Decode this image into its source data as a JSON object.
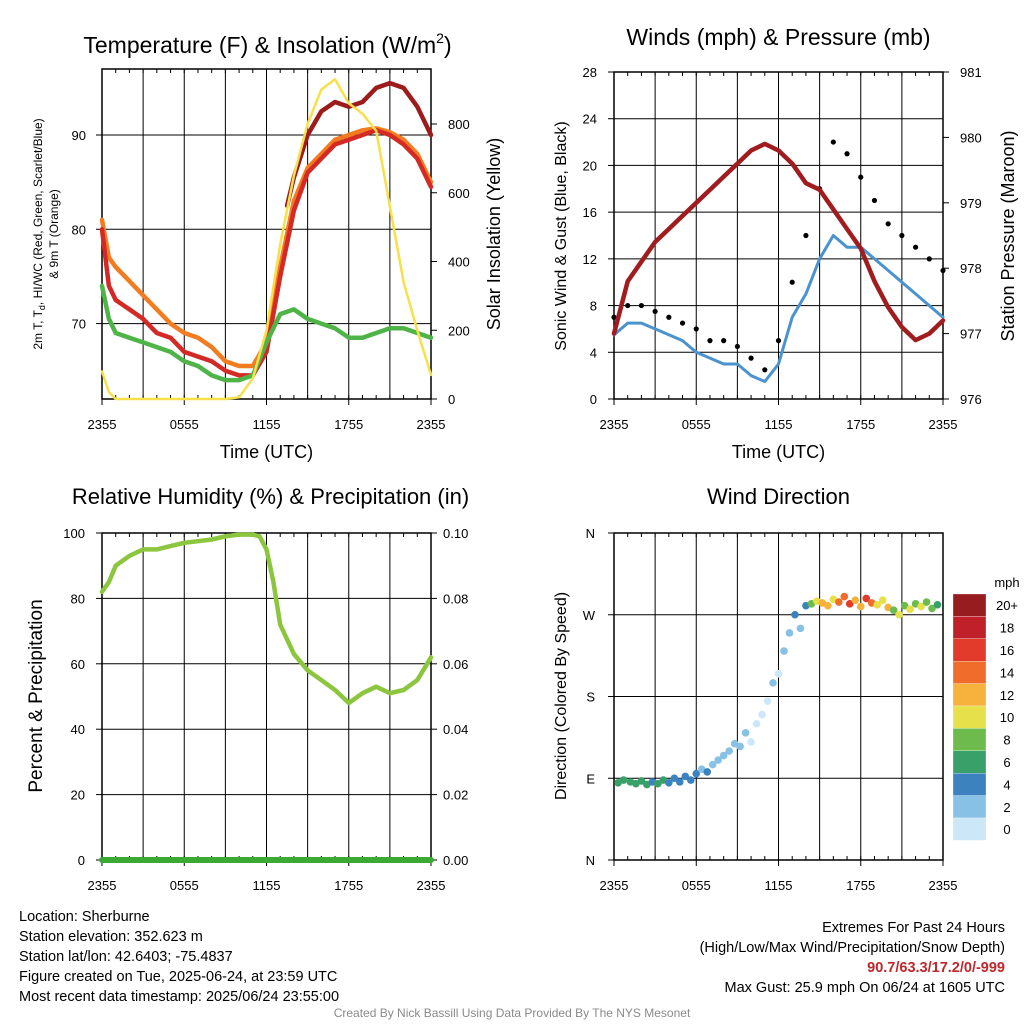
{
  "chart_data": [
    {
      "type": "line",
      "title_pre": "Temperature (F) & Insolation (W/m",
      "title_sup": "2",
      "title_post": ")",
      "ylabel_left": [
        "2m T, T",
        "d",
        ", HI/WC (Red, Green, Scarlet/Blue)",
        "& 9m T (Orange)"
      ],
      "ylabel_right": "Solar Insolation (Yellow)",
      "xlabel": "Time (UTC)",
      "x_ticks": [
        "2355",
        "0555",
        "1155",
        "1755",
        "2355"
      ],
      "x_range_hours": [
        0,
        24
      ],
      "ylim_left": [
        62,
        97
      ],
      "yticks_left": [
        70,
        80,
        90
      ],
      "ylim_right": [
        0,
        960
      ],
      "yticks_right": [
        0,
        200,
        400,
        600,
        800
      ],
      "series": [
        {
          "color": "#f47c20",
          "axis": "left",
          "x": [
            0,
            0.5,
            1,
            2,
            3,
            4,
            5,
            6,
            7,
            8,
            9,
            10,
            11,
            12,
            13,
            14,
            15,
            16,
            17,
            18,
            19,
            20,
            21,
            22,
            23,
            24
          ],
          "y": [
            81,
            77,
            76,
            74.5,
            73,
            71.5,
            70,
            69,
            68.5,
            67.5,
            66,
            65.5,
            65.5,
            68,
            76,
            83,
            86.5,
            88,
            89.5,
            90,
            90.5,
            90.7,
            90.3,
            89.5,
            88,
            85
          ]
        },
        {
          "color": "#d42a25",
          "axis": "left",
          "x": [
            0,
            0.5,
            1,
            2,
            3,
            4,
            5,
            6,
            7,
            8,
            9,
            10,
            11,
            12,
            13,
            14,
            15,
            16,
            17,
            18,
            19,
            20,
            21,
            22,
            23,
            24
          ],
          "y": [
            80,
            74,
            72.5,
            71.5,
            70.5,
            69,
            68.5,
            67,
            66.5,
            66,
            65,
            64.5,
            64.5,
            67,
            75,
            82,
            86,
            87.5,
            89,
            89.5,
            90,
            90.5,
            90,
            89,
            87.5,
            84.5
          ]
        },
        {
          "color": "#9e1b1c",
          "axis": "left",
          "x": [
            13.5,
            14,
            15,
            16,
            17,
            18,
            19,
            20,
            21,
            22,
            23,
            24
          ],
          "y": [
            82.5,
            85.5,
            90,
            92.5,
            93.5,
            93,
            93.5,
            95,
            95.5,
            95,
            93,
            90
          ]
        },
        {
          "color": "#4eb448",
          "axis": "left",
          "x": [
            0,
            0.5,
            1,
            2,
            3,
            4,
            5,
            6,
            7,
            8,
            9,
            10,
            11,
            12,
            13,
            14,
            15,
            16,
            17,
            18,
            19,
            20,
            21,
            22,
            23,
            24
          ],
          "y": [
            74,
            70.5,
            69,
            68.5,
            68,
            67.5,
            67,
            66,
            65.5,
            64.5,
            64,
            64,
            64.5,
            68,
            71,
            71.5,
            70.5,
            70,
            69.5,
            68.5,
            68.5,
            69,
            69.5,
            69.5,
            69,
            68.5
          ]
        },
        {
          "color": "#f7e04b",
          "axis": "right",
          "x": [
            0,
            0.5,
            1,
            2,
            3,
            4,
            5,
            6,
            7,
            8,
            9,
            10,
            11,
            12,
            13,
            14,
            15,
            16,
            17,
            18,
            19,
            20,
            21,
            22,
            23,
            24
          ],
          "y": [
            80,
            20,
            0,
            0,
            0,
            0,
            0,
            0,
            0,
            0,
            0,
            5,
            60,
            200,
            450,
            650,
            800,
            900,
            930,
            860,
            830,
            780,
            560,
            340,
            200,
            70
          ]
        }
      ]
    },
    {
      "type": "line",
      "title": "Winds (mph) & Pressure (mb)",
      "ylabel_left": "Sonic Wind & Gust (Blue, Black)",
      "ylabel_right": "Station Pressure (Maroon)",
      "xlabel": "Time (UTC)",
      "x_ticks": [
        "2355",
        "0555",
        "1155",
        "1755",
        "2355"
      ],
      "x_range_hours": [
        0,
        24
      ],
      "ylim_left": [
        0,
        28
      ],
      "yticks_left": [
        0,
        4,
        8,
        12,
        16,
        20,
        24,
        28
      ],
      "ylim_right": [
        976,
        981
      ],
      "yticks_right": [
        976,
        977,
        978,
        979,
        980,
        981
      ],
      "series": [
        {
          "name_hint": "wind",
          "color": "#4a93cf",
          "axis": "left",
          "x": [
            0,
            1,
            2,
            3,
            4,
            5,
            6,
            7,
            8,
            9,
            10,
            11,
            12,
            13,
            14,
            15,
            16,
            17,
            18,
            19,
            20,
            21,
            22,
            23,
            24
          ],
          "y": [
            5.5,
            6.5,
            6.5,
            6,
            5.5,
            5,
            4,
            3.5,
            3,
            3,
            2,
            1.5,
            3,
            7,
            9,
            12,
            14,
            13,
            13,
            12,
            11,
            10,
            9,
            8,
            7
          ]
        },
        {
          "name_hint": "gust",
          "color": "#000000",
          "axis": "left",
          "style": "points",
          "x": [
            0,
            1,
            2,
            3,
            4,
            5,
            6,
            7,
            8,
            9,
            10,
            11,
            12,
            13,
            14,
            15,
            16,
            17,
            18,
            19,
            20,
            21,
            22,
            23,
            24
          ],
          "y": [
            7,
            8,
            8,
            7.5,
            7,
            6.5,
            6,
            5,
            5,
            4.5,
            3.5,
            2.5,
            5,
            10,
            14,
            18,
            22,
            21,
            19,
            17,
            15,
            14,
            13,
            12,
            11
          ]
        },
        {
          "name_hint": "pressure",
          "color": "#a01c1e",
          "axis": "right",
          "x": [
            0,
            0.5,
            1,
            2,
            3,
            4,
            5,
            6,
            7,
            8,
            9,
            10,
            11,
            12,
            13,
            14,
            15,
            16,
            17,
            18,
            19,
            20,
            21,
            22,
            23,
            24
          ],
          "y": [
            977,
            977.4,
            977.8,
            978.1,
            978.4,
            978.6,
            978.8,
            979,
            979.2,
            979.4,
            979.6,
            979.8,
            979.9,
            979.8,
            979.6,
            979.3,
            979.2,
            978.9,
            978.6,
            978.3,
            977.8,
            977.4,
            977.1,
            976.9,
            977,
            977.2
          ]
        }
      ]
    },
    {
      "type": "line",
      "title": "Relative Humidity (%) & Precipitation (in)",
      "ylabel_left": "Percent & Precipitation",
      "x_ticks": [
        "2355",
        "0555",
        "1155",
        "1755",
        "2355"
      ],
      "x_range_hours": [
        0,
        24
      ],
      "ylim_left": [
        0,
        100
      ],
      "yticks_left": [
        0,
        20,
        40,
        60,
        80,
        100
      ],
      "ylim_right": [
        0,
        0.1
      ],
      "yticks_right": [
        "0.00",
        "0.02",
        "0.04",
        "0.06",
        "0.08",
        "0.10"
      ],
      "series": [
        {
          "name_hint": "rh",
          "color": "#8cc63f",
          "axis": "left",
          "x": [
            0,
            0.5,
            1,
            2,
            3,
            4,
            5,
            6,
            7,
            8,
            9,
            10,
            11,
            11.5,
            12,
            12.5,
            13,
            14,
            15,
            16,
            17,
            18,
            19,
            20,
            21,
            22,
            23,
            24
          ],
          "y": [
            82,
            85,
            90,
            93,
            95,
            95,
            96,
            97,
            97.5,
            98,
            99,
            99.5,
            99.5,
            99,
            95,
            85,
            72,
            63,
            58,
            55,
            52,
            48,
            51,
            53,
            51,
            52,
            55,
            62
          ]
        },
        {
          "name_hint": "precip",
          "color": "#3aaa35",
          "axis": "left",
          "x": [
            0,
            24
          ],
          "y": [
            0,
            0
          ]
        }
      ]
    },
    {
      "type": "scatter",
      "title": "Wind Direction",
      "ylabel_left": "Direction (Colored By Speed)",
      "x_ticks": [
        "2355",
        "0555",
        "1155",
        "1755",
        "2355"
      ],
      "x_range_hours": [
        0,
        24
      ],
      "y_ticks": [
        "N",
        "E",
        "S",
        "W",
        "N"
      ],
      "ylim": [
        0,
        360
      ],
      "colorbar": {
        "title": "mph",
        "labels": [
          "0",
          "2",
          "4",
          "6",
          "8",
          "10",
          "12",
          "14",
          "16",
          "18",
          "20+"
        ],
        "colors": [
          "#cce7f7",
          "#88c1e6",
          "#3b82bf",
          "#3aa06a",
          "#6dbb4c",
          "#e6e04a",
          "#f7b13d",
          "#f06c2b",
          "#e23b2c",
          "#c0202a",
          "#961c20"
        ]
      },
      "points": [
        {
          "t": 0.3,
          "d": 85,
          "s": 6
        },
        {
          "t": 0.7,
          "d": 88,
          "s": 7
        },
        {
          "t": 1.2,
          "d": 86,
          "s": 6
        },
        {
          "t": 1.6,
          "d": 84,
          "s": 7
        },
        {
          "t": 2.0,
          "d": 87,
          "s": 6
        },
        {
          "t": 2.4,
          "d": 83,
          "s": 7
        },
        {
          "t": 2.8,
          "d": 86,
          "s": 5
        },
        {
          "t": 3.2,
          "d": 84,
          "s": 7
        },
        {
          "t": 3.6,
          "d": 88,
          "s": 6
        },
        {
          "t": 4.0,
          "d": 85,
          "s": 5
        },
        {
          "t": 4.4,
          "d": 90,
          "s": 4
        },
        {
          "t": 4.8,
          "d": 86,
          "s": 5
        },
        {
          "t": 5.2,
          "d": 92,
          "s": 4
        },
        {
          "t": 5.6,
          "d": 88,
          "s": 4
        },
        {
          "t": 6.0,
          "d": 95,
          "s": 4
        },
        {
          "t": 6.4,
          "d": 100,
          "s": 3
        },
        {
          "t": 6.8,
          "d": 97,
          "s": 4
        },
        {
          "t": 7.2,
          "d": 105,
          "s": 3
        },
        {
          "t": 7.6,
          "d": 110,
          "s": 3
        },
        {
          "t": 8.0,
          "d": 115,
          "s": 2
        },
        {
          "t": 8.4,
          "d": 120,
          "s": 3
        },
        {
          "t": 8.8,
          "d": 128,
          "s": 2
        },
        {
          "t": 9.2,
          "d": 125,
          "s": 3
        },
        {
          "t": 9.6,
          "d": 140,
          "s": 2
        },
        {
          "t": 10.0,
          "d": 130,
          "s": 1
        },
        {
          "t": 10.4,
          "d": 150,
          "s": 1
        },
        {
          "t": 10.8,
          "d": 160,
          "s": 0
        },
        {
          "t": 11.2,
          "d": 175,
          "s": 1
        },
        {
          "t": 11.6,
          "d": 195,
          "s": 2
        },
        {
          "t": 12.0,
          "d": 205,
          "s": 1
        },
        {
          "t": 12.4,
          "d": 230,
          "s": 2
        },
        {
          "t": 12.8,
          "d": 250,
          "s": 3
        },
        {
          "t": 13.2,
          "d": 270,
          "s": 4
        },
        {
          "t": 13.6,
          "d": 255,
          "s": 2
        },
        {
          "t": 14.0,
          "d": 280,
          "s": 5
        },
        {
          "t": 14.4,
          "d": 282,
          "s": 9
        },
        {
          "t": 14.8,
          "d": 285,
          "s": 10
        },
        {
          "t": 15.2,
          "d": 283,
          "s": 12
        },
        {
          "t": 15.6,
          "d": 280,
          "s": 13
        },
        {
          "t": 16.0,
          "d": 287,
          "s": 11
        },
        {
          "t": 16.4,
          "d": 284,
          "s": 14
        },
        {
          "t": 16.8,
          "d": 290,
          "s": 15
        },
        {
          "t": 17.2,
          "d": 282,
          "s": 16
        },
        {
          "t": 17.6,
          "d": 286,
          "s": 13
        },
        {
          "t": 18.0,
          "d": 279,
          "s": 12
        },
        {
          "t": 18.4,
          "d": 288,
          "s": 17
        },
        {
          "t": 18.8,
          "d": 283,
          "s": 15
        },
        {
          "t": 19.2,
          "d": 281,
          "s": 11
        },
        {
          "t": 19.6,
          "d": 286,
          "s": 10
        },
        {
          "t": 20.0,
          "d": 278,
          "s": 12
        },
        {
          "t": 20.4,
          "d": 275,
          "s": 9
        },
        {
          "t": 20.8,
          "d": 270,
          "s": 10
        },
        {
          "t": 21.2,
          "d": 280,
          "s": 8
        },
        {
          "t": 21.6,
          "d": 276,
          "s": 11
        },
        {
          "t": 22.0,
          "d": 282,
          "s": 9
        },
        {
          "t": 22.4,
          "d": 279,
          "s": 10
        },
        {
          "t": 22.8,
          "d": 284,
          "s": 8
        },
        {
          "t": 23.2,
          "d": 277,
          "s": 9
        },
        {
          "t": 23.6,
          "d": 281,
          "s": 7
        }
      ]
    }
  ],
  "info_left": [
    "Location: Sherburne",
    "Station elevation: 352.623 m",
    "Station lat/lon: 42.6403; -75.4837",
    "Figure created on Tue, 2025-06-24, at 23:59 UTC",
    "Most recent data timestamp: 2025/06/24 23:55:00"
  ],
  "info_right": {
    "line1": "Extremes For Past 24 Hours",
    "line2": "(High/Low/Max Wind/Precipitation/Snow Depth)",
    "extremes": "90.7/63.3/17.2/0/-999",
    "gust": "Max Gust: 25.9 mph On 06/24 at 1605 UTC"
  },
  "credit": "Created By Nick Bassill Using Data Provided By The NYS Mesonet"
}
